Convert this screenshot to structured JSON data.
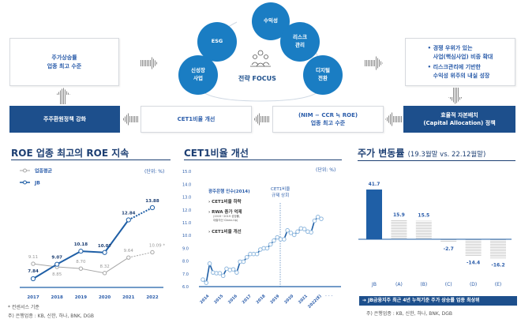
{
  "diagram": {
    "box_stock": [
      "주가상승률",
      "업종 최고 수준"
    ],
    "box_shareholder": "주주환원정책 강화",
    "box_cet1": "CET1비율 개선",
    "box_nim": [
      "(NIM − CCR ≒ ROE)",
      "업종 최고 수준"
    ],
    "box_capital": [
      "효율적 자본배치",
      "(Capital Allocation) 정책"
    ],
    "box_strategy": [
      "• 경쟁 우위가 있는",
      "사업(핵심사업) 비중 확대",
      "• 리스크관리에 기반한",
      "수익성 위주의 내실 성장"
    ],
    "center_title": "전략 FOCUS",
    "circles": [
      [
        "수익성"
      ],
      [
        "ESG"
      ],
      [
        "리스크",
        "관리"
      ],
      [
        "신성장",
        "사업"
      ],
      [
        "디지털",
        "전환"
      ]
    ],
    "colors": {
      "circle": "#1a7dc3",
      "dark_box": "#1d4f8c",
      "text_blue": "#2a5caa"
    }
  },
  "roe": {
    "title": "ROE 업종 최고의 ROE 지속",
    "unit": "(단위: %)",
    "footnote1": "* 컨센서스 기준",
    "footnote2": "주) 은행업종 : KB, 신한, 하나, BNK, DGB"
  },
  "cet1": {
    "title": "CET1비율 개선",
    "unit": "(단위: %)",
    "ann_title": "광주은행 인수(2014)",
    "ann_items": [
      "› CET1비율 하락",
      "› RWA 증가 억제",
      "› CET1비율 개선"
    ],
    "ann_small": [
      "(2015~2019 성장률,",
      "대출자산 Clean-Up)"
    ],
    "ref_label": [
      "CET1비율",
      "규제 상회"
    ]
  },
  "stock": {
    "title": "주가 변동률",
    "subtitle": "(19.3월말 vs. 22.12월말)",
    "banner": "➔ JB금융지주 최근 4년 누적기준 주가 상승률 업종 최상위",
    "footnote": "주) 은행업종 : KB, 신한, 하나, BNK, DGB"
  },
  "chart_data": [
    {
      "type": "line",
      "categories": [
        "2017",
        "2018",
        "2019",
        "2020",
        "2021",
        "2022"
      ],
      "series": [
        {
          "name": "업종평균",
          "values": [
            9.11,
            8.85,
            8.7,
            8.32,
            9.64,
            10.09
          ],
          "labels": [
            "9.11",
            "8.85",
            "8.70",
            "8.32",
            "9.64",
            "10.09 *"
          ],
          "color": "#a6a6a6"
        },
        {
          "name": "JB",
          "values": [
            7.84,
            9.07,
            10.18,
            10.07,
            12.84,
            13.88
          ],
          "labels": [
            "7.84",
            "9.07",
            "10.18",
            "10.07",
            "12.84",
            "13.88"
          ],
          "color": "#1f5fa6"
        }
      ],
      "projected_last": true
    },
    {
      "type": "line",
      "ylim": [
        6.0,
        15.0
      ],
      "yticks": [
        "6.0",
        "7.0",
        "8.0",
        "9.0",
        "10.0",
        "11.0",
        "12.0",
        "13.0",
        "14.0",
        "15.0"
      ],
      "xticks": [
        "2014",
        "2015",
        "2016",
        "2017",
        "2018",
        "2019",
        "2020",
        "2021",
        "2022(E)"
      ],
      "values": [
        6.55,
        6.3,
        7.8,
        7.1,
        7.05,
        7.05,
        6.85,
        7.4,
        7.3,
        7.35,
        7.1,
        7.95,
        7.95,
        8.3,
        8.55,
        8.55,
        8.55,
        8.9,
        9.0,
        9.0,
        9.3,
        9.6,
        9.85,
        9.7,
        9.7,
        10.4,
        10.2,
        10.05,
        10.3,
        10.55,
        10.5,
        10.3,
        10.25,
        11.15,
        11.45,
        11.3
      ],
      "color": "#1f5fa6"
    },
    {
      "type": "bar",
      "categories": [
        "JB",
        "(A)",
        "(B)",
        "(C)",
        "(D)",
        "(E)"
      ],
      "values": [
        41.7,
        15.9,
        15.5,
        -2.7,
        -14.4,
        -16.2
      ],
      "labels": [
        "41.7",
        "15.9",
        "15.5",
        "-2.7",
        "-14.4",
        "-16.2"
      ],
      "colors": {
        "JB": "#1f5fa6",
        "others": "#d9d9d9"
      }
    }
  ]
}
